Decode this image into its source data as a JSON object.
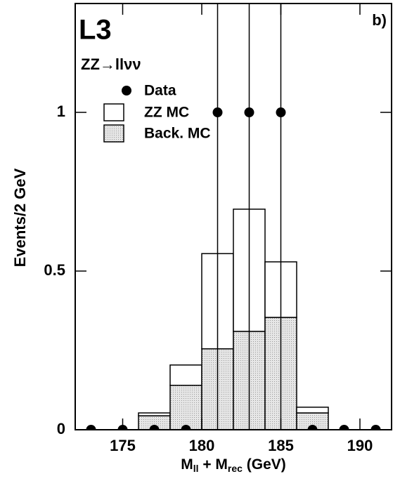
{
  "chart_data": {
    "type": "histogram",
    "title": "L3",
    "subtitle": "ZZ→llνν",
    "panel_label": "b)",
    "ylabel": "Events/2 GeV",
    "xlabel_parts": [
      "M",
      "ll",
      " + M",
      "rec",
      " (GeV)"
    ],
    "bins": [
      176,
      178,
      180,
      182,
      184,
      186,
      188
    ],
    "series": [
      {
        "name": "Back. MC",
        "color": "#d9d9d9",
        "values": [
          0.044,
          0.14,
          0.255,
          0.31,
          0.354,
          0.053
        ]
      },
      {
        "name": "ZZ MC",
        "color": "#ffffff",
        "values": [
          0.009,
          0.064,
          0.3,
          0.385,
          0.175,
          0.018
        ]
      }
    ],
    "data": {
      "name": "Data",
      "color": "#000000",
      "x": [
        173,
        175,
        177,
        179,
        181,
        183,
        185,
        187,
        189,
        191
      ],
      "values": [
        0,
        0,
        0,
        0,
        1,
        1,
        1,
        0,
        0,
        0
      ],
      "yerr": [
        0,
        0,
        0,
        0,
        1,
        1,
        1,
        0,
        0,
        0
      ]
    },
    "xlim": [
      172,
      192
    ],
    "ylim": [
      0,
      1.343
    ],
    "xticks": [
      175,
      180,
      185,
      190
    ],
    "yticks": [
      0,
      0.5,
      1
    ]
  }
}
